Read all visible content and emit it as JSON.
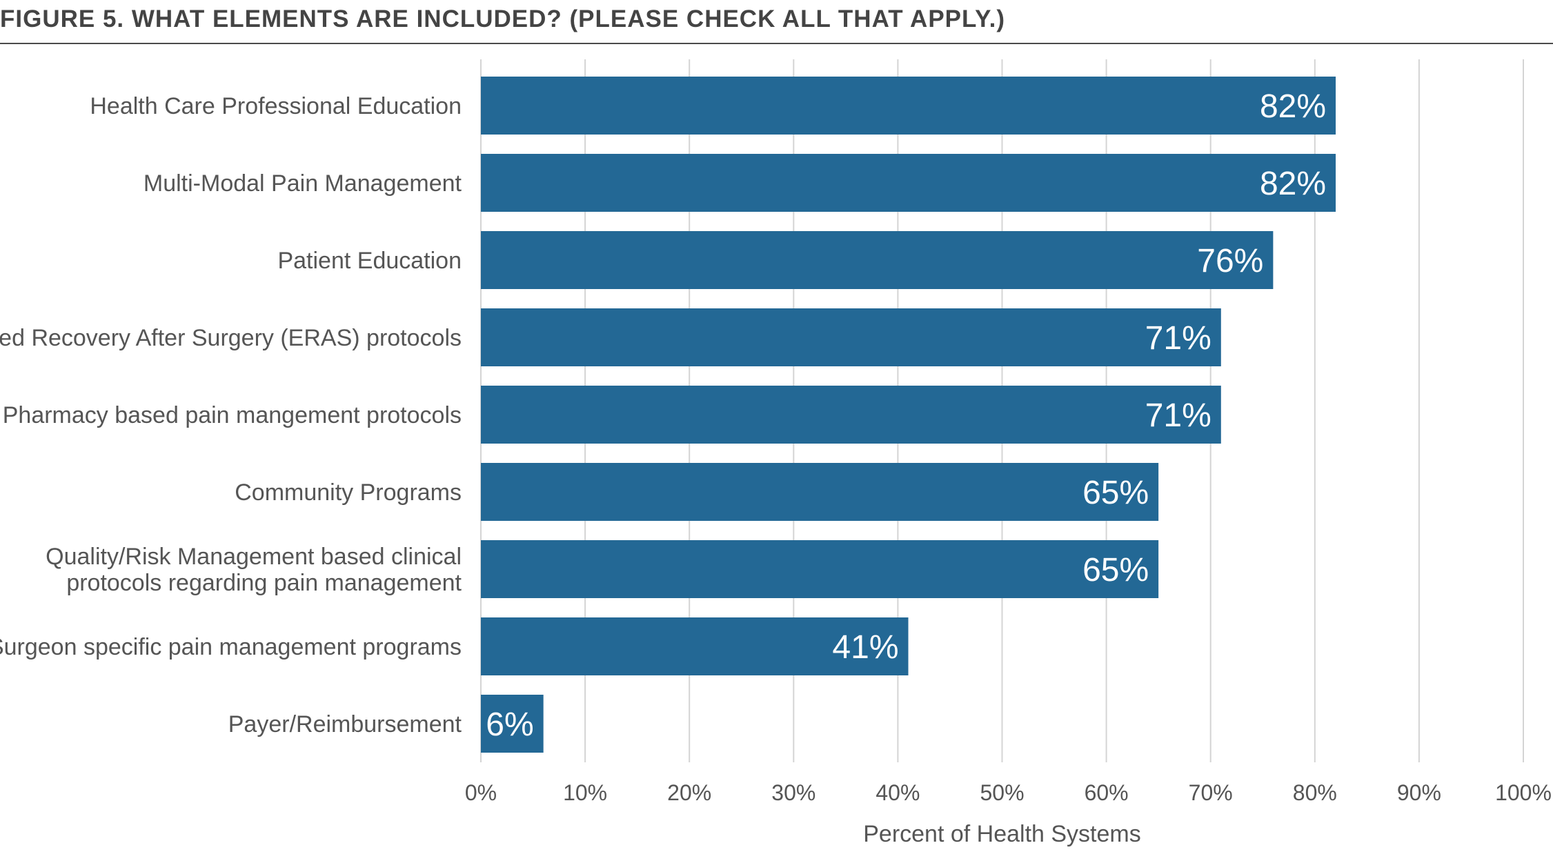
{
  "figure": {
    "title": "FIGURE 5. WHAT ELEMENTS ARE INCLUDED? (PLEASE CHECK ALL THAT APPLY.)"
  },
  "colors": {
    "bar": "#236895",
    "grid": "#d4d4d4",
    "text": "#555555",
    "title": "#444444"
  },
  "chart_data": {
    "type": "bar",
    "orientation": "horizontal",
    "categories": [
      "Health Care Professional Education",
      "Multi-Modal Pain Management",
      "Patient Education",
      "Enhanced Recovery After Surgery (ERAS) protocols",
      "Pharmacy based pain mangement protocols",
      "Community Programs",
      "Quality/Risk Management based clinical\nprotocols regarding pain management",
      "Surgeon specific pain management programs",
      "Payer/Reimbursement"
    ],
    "values": [
      82,
      82,
      76,
      71,
      71,
      65,
      65,
      41,
      6
    ],
    "data_labels": [
      "82%",
      "82%",
      "76%",
      "71%",
      "71%",
      "65%",
      "65%",
      "41%",
      "6%"
    ],
    "xlim": [
      0,
      100
    ],
    "xticks": [
      "0%",
      "10%",
      "20%",
      "30%",
      "40%",
      "50%",
      "60%",
      "70%",
      "80%",
      "90%",
      "100%"
    ],
    "xlabel": "Percent of Health Systems",
    "ylabel": "",
    "grid": "vertical",
    "legend": "none"
  }
}
